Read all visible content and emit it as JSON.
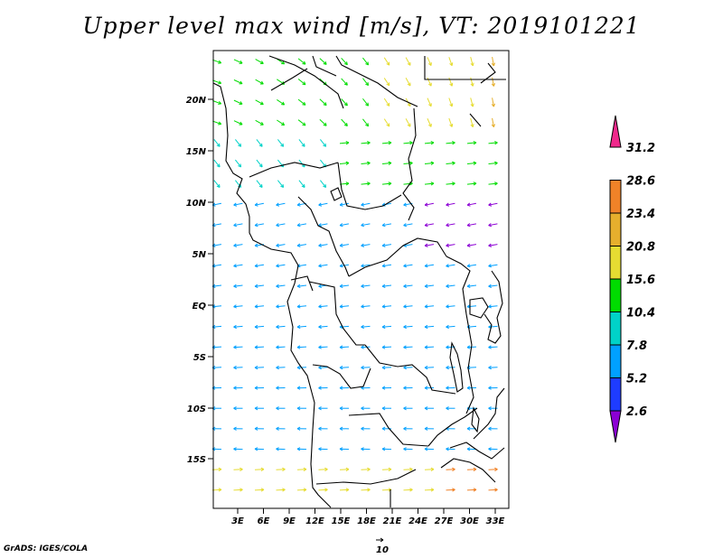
{
  "title": "Upper level max wind [m/s], VT: 2019101221",
  "credit": "GrADS: IGES/COLA",
  "reference_vector_label": "10",
  "lat_labels": [
    "20N",
    "15N",
    "10N",
    "5N",
    "EQ",
    "5S",
    "10S",
    "15S"
  ],
  "lon_labels": [
    "3E",
    "6E",
    "9E",
    "12E",
    "15E",
    "18E",
    "21E",
    "24E",
    "27E",
    "30E",
    "33E"
  ],
  "colorbar": {
    "labels": [
      "2.6",
      "5.2",
      "7.8",
      "10.4",
      "15.6",
      "20.8",
      "23.4",
      "28.6",
      "31.2"
    ],
    "colors": [
      "#8c00d4",
      "#1e3cff",
      "#00a0ff",
      "#00d2c8",
      "#00dc00",
      "#e6dc32",
      "#e6af2d",
      "#f08228",
      "#f0288c"
    ]
  },
  "colors": {
    "coast": "#000000",
    "frame": "#000000"
  }
}
